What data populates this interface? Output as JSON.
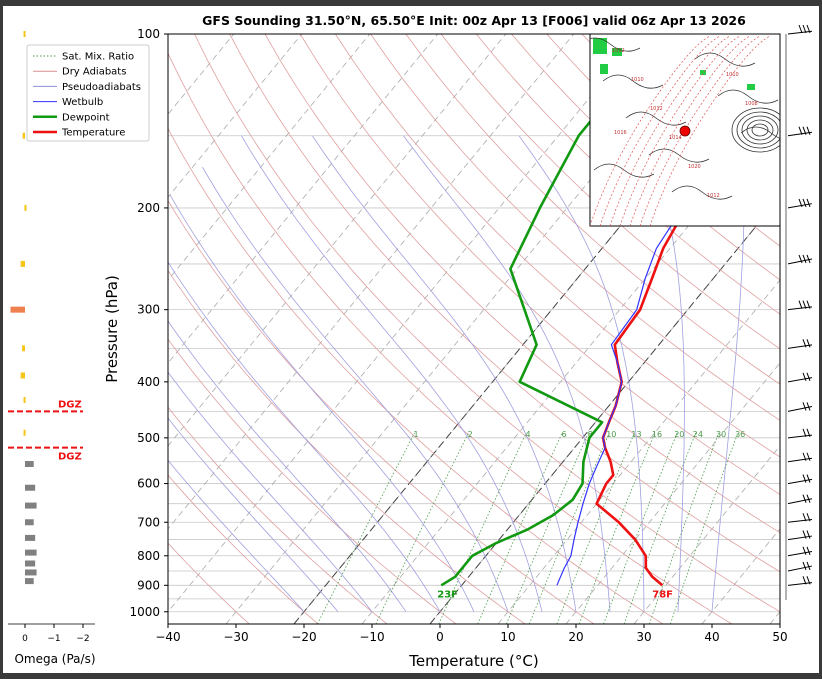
{
  "chart_data": {
    "type": "skew-t",
    "title": "GFS Sounding 31.50°N, 65.50°E Init: 00z Apr 13 [F006] valid 06z Apr 13 2026",
    "xlabel": "Temperature (°C)",
    "ylabel": "Pressure (hPa)",
    "xlim": [
      -40,
      50
    ],
    "ylim": [
      1050,
      100
    ],
    "x_ticks": [
      "−40",
      "−30",
      "−20",
      "−10",
      "0",
      "10",
      "20",
      "30",
      "40",
      "50"
    ],
    "y_ticks": [
      "100",
      "200",
      "300",
      "400",
      "500",
      "600",
      "700",
      "800",
      "900",
      "1000"
    ],
    "y_tick_values": [
      100,
      200,
      300,
      400,
      500,
      600,
      700,
      800,
      900,
      1000
    ],
    "legend": {
      "placement": "top-left",
      "entries": [
        {
          "label": "Sat. Mix. Ratio",
          "color": "#4a9a4a",
          "style": "dotted"
        },
        {
          "label": "Dry Adiabats",
          "color": "#d99090",
          "style": "solid"
        },
        {
          "label": "Pseudoadiabats",
          "color": "#9090d0",
          "style": "solid"
        },
        {
          "label": "Wetbulb",
          "color": "#3333ff",
          "style": "solid"
        },
        {
          "label": "Dewpoint",
          "color": "#119911",
          "style": "thick"
        },
        {
          "label": "Temperature",
          "color": "#ee1111",
          "style": "thick"
        }
      ]
    },
    "mixing_ratio_labels": [
      "1",
      "2",
      "4",
      "6",
      "8",
      "10",
      "13",
      "16",
      "20",
      "24",
      "30",
      "36"
    ],
    "series": [
      {
        "name": "Temperature",
        "color": "#ee1111",
        "points": [
          [
            29.5,
            900
          ],
          [
            27,
            870
          ],
          [
            25,
            840
          ],
          [
            23.5,
            800
          ],
          [
            20,
            750
          ],
          [
            15.5,
            700
          ],
          [
            10,
            650
          ],
          [
            9,
            600
          ],
          [
            9,
            580
          ],
          [
            7,
            550
          ],
          [
            4.5,
            520
          ],
          [
            3,
            500
          ],
          [
            2,
            470
          ],
          [
            1,
            440
          ],
          [
            -1,
            400
          ],
          [
            -4,
            370
          ],
          [
            -6.5,
            345
          ],
          [
            -7,
            300
          ],
          [
            -9,
            265
          ],
          [
            -11,
            235
          ],
          [
            -12.5,
            200
          ],
          [
            -11,
            170
          ],
          [
            -9,
            140
          ],
          [
            -8,
            120
          ],
          [
            -7.5,
            100
          ]
        ]
      },
      {
        "name": "Wetbulb",
        "color": "#3333ff",
        "points": [
          [
            14,
            900
          ],
          [
            13.5,
            870
          ],
          [
            13,
            840
          ],
          [
            12.5,
            800
          ],
          [
            11,
            750
          ],
          [
            9.5,
            700
          ],
          [
            8,
            650
          ],
          [
            6.5,
            600
          ],
          [
            5.5,
            560
          ],
          [
            4.5,
            520
          ],
          [
            3,
            500
          ],
          [
            2,
            470
          ],
          [
            1,
            440
          ],
          [
            -1,
            400
          ],
          [
            -4,
            370
          ],
          [
            -7,
            345
          ],
          [
            -7.5,
            300
          ],
          [
            -10,
            265
          ],
          [
            -12,
            235
          ],
          [
            -13,
            200
          ]
        ]
      },
      {
        "name": "Dewpoint",
        "color": "#119911",
        "points": [
          [
            -3,
            900
          ],
          [
            -2,
            870
          ],
          [
            -2,
            800
          ],
          [
            0,
            760
          ],
          [
            3,
            720
          ],
          [
            5,
            680
          ],
          [
            6,
            640
          ],
          [
            5.5,
            600
          ],
          [
            3,
            550
          ],
          [
            1,
            500
          ],
          [
            1,
            470
          ],
          [
            -16,
            400
          ],
          [
            -18,
            345
          ],
          [
            -24,
            300
          ],
          [
            -31,
            255
          ],
          [
            -34,
            200
          ],
          [
            -37,
            150
          ],
          [
            -37,
            120
          ],
          [
            -31,
            100
          ]
        ]
      }
    ],
    "annotations": {
      "surface_temp": "78F",
      "surface_dewpoint": "23F",
      "dgz": "DGZ"
    },
    "omega": {
      "label": "Omega (Pa/s)",
      "ticks": [
        "0",
        "−1",
        "−2"
      ],
      "levels": [
        {
          "p": 885,
          "v": -0.3
        },
        {
          "p": 855,
          "v": -0.4
        },
        {
          "p": 825,
          "v": -0.35
        },
        {
          "p": 790,
          "v": -0.4
        },
        {
          "p": 745,
          "v": -0.35
        },
        {
          "p": 700,
          "v": -0.3
        },
        {
          "p": 655,
          "v": -0.4
        },
        {
          "p": 610,
          "v": -0.35
        },
        {
          "p": 555,
          "v": -0.3
        },
        {
          "p": 490,
          "v": 0.05
        },
        {
          "p": 430,
          "v": 0.05
        },
        {
          "p": 390,
          "v": 0.15
        },
        {
          "p": 350,
          "v": 0.1
        },
        {
          "p": 300,
          "v": 0.5
        },
        {
          "p": 250,
          "v": 0.15
        },
        {
          "p": 200,
          "v": 0.02
        },
        {
          "p": 150,
          "v": 0.08
        },
        {
          "p": 100,
          "v": 0.05
        }
      ],
      "dgz_pressures": [
        450,
        520
      ]
    },
    "wind_barbs_levels": [
      100,
      150,
      200,
      250,
      300,
      350,
      400,
      450,
      500,
      550,
      600,
      650,
      700,
      750,
      800,
      850,
      900
    ],
    "inset_map": {
      "labels": [
        "1012",
        "1010",
        "1012",
        "1014",
        "1020",
        "1012",
        "1010",
        "1008",
        "1016"
      ],
      "marker_color": "#ee0000"
    }
  }
}
